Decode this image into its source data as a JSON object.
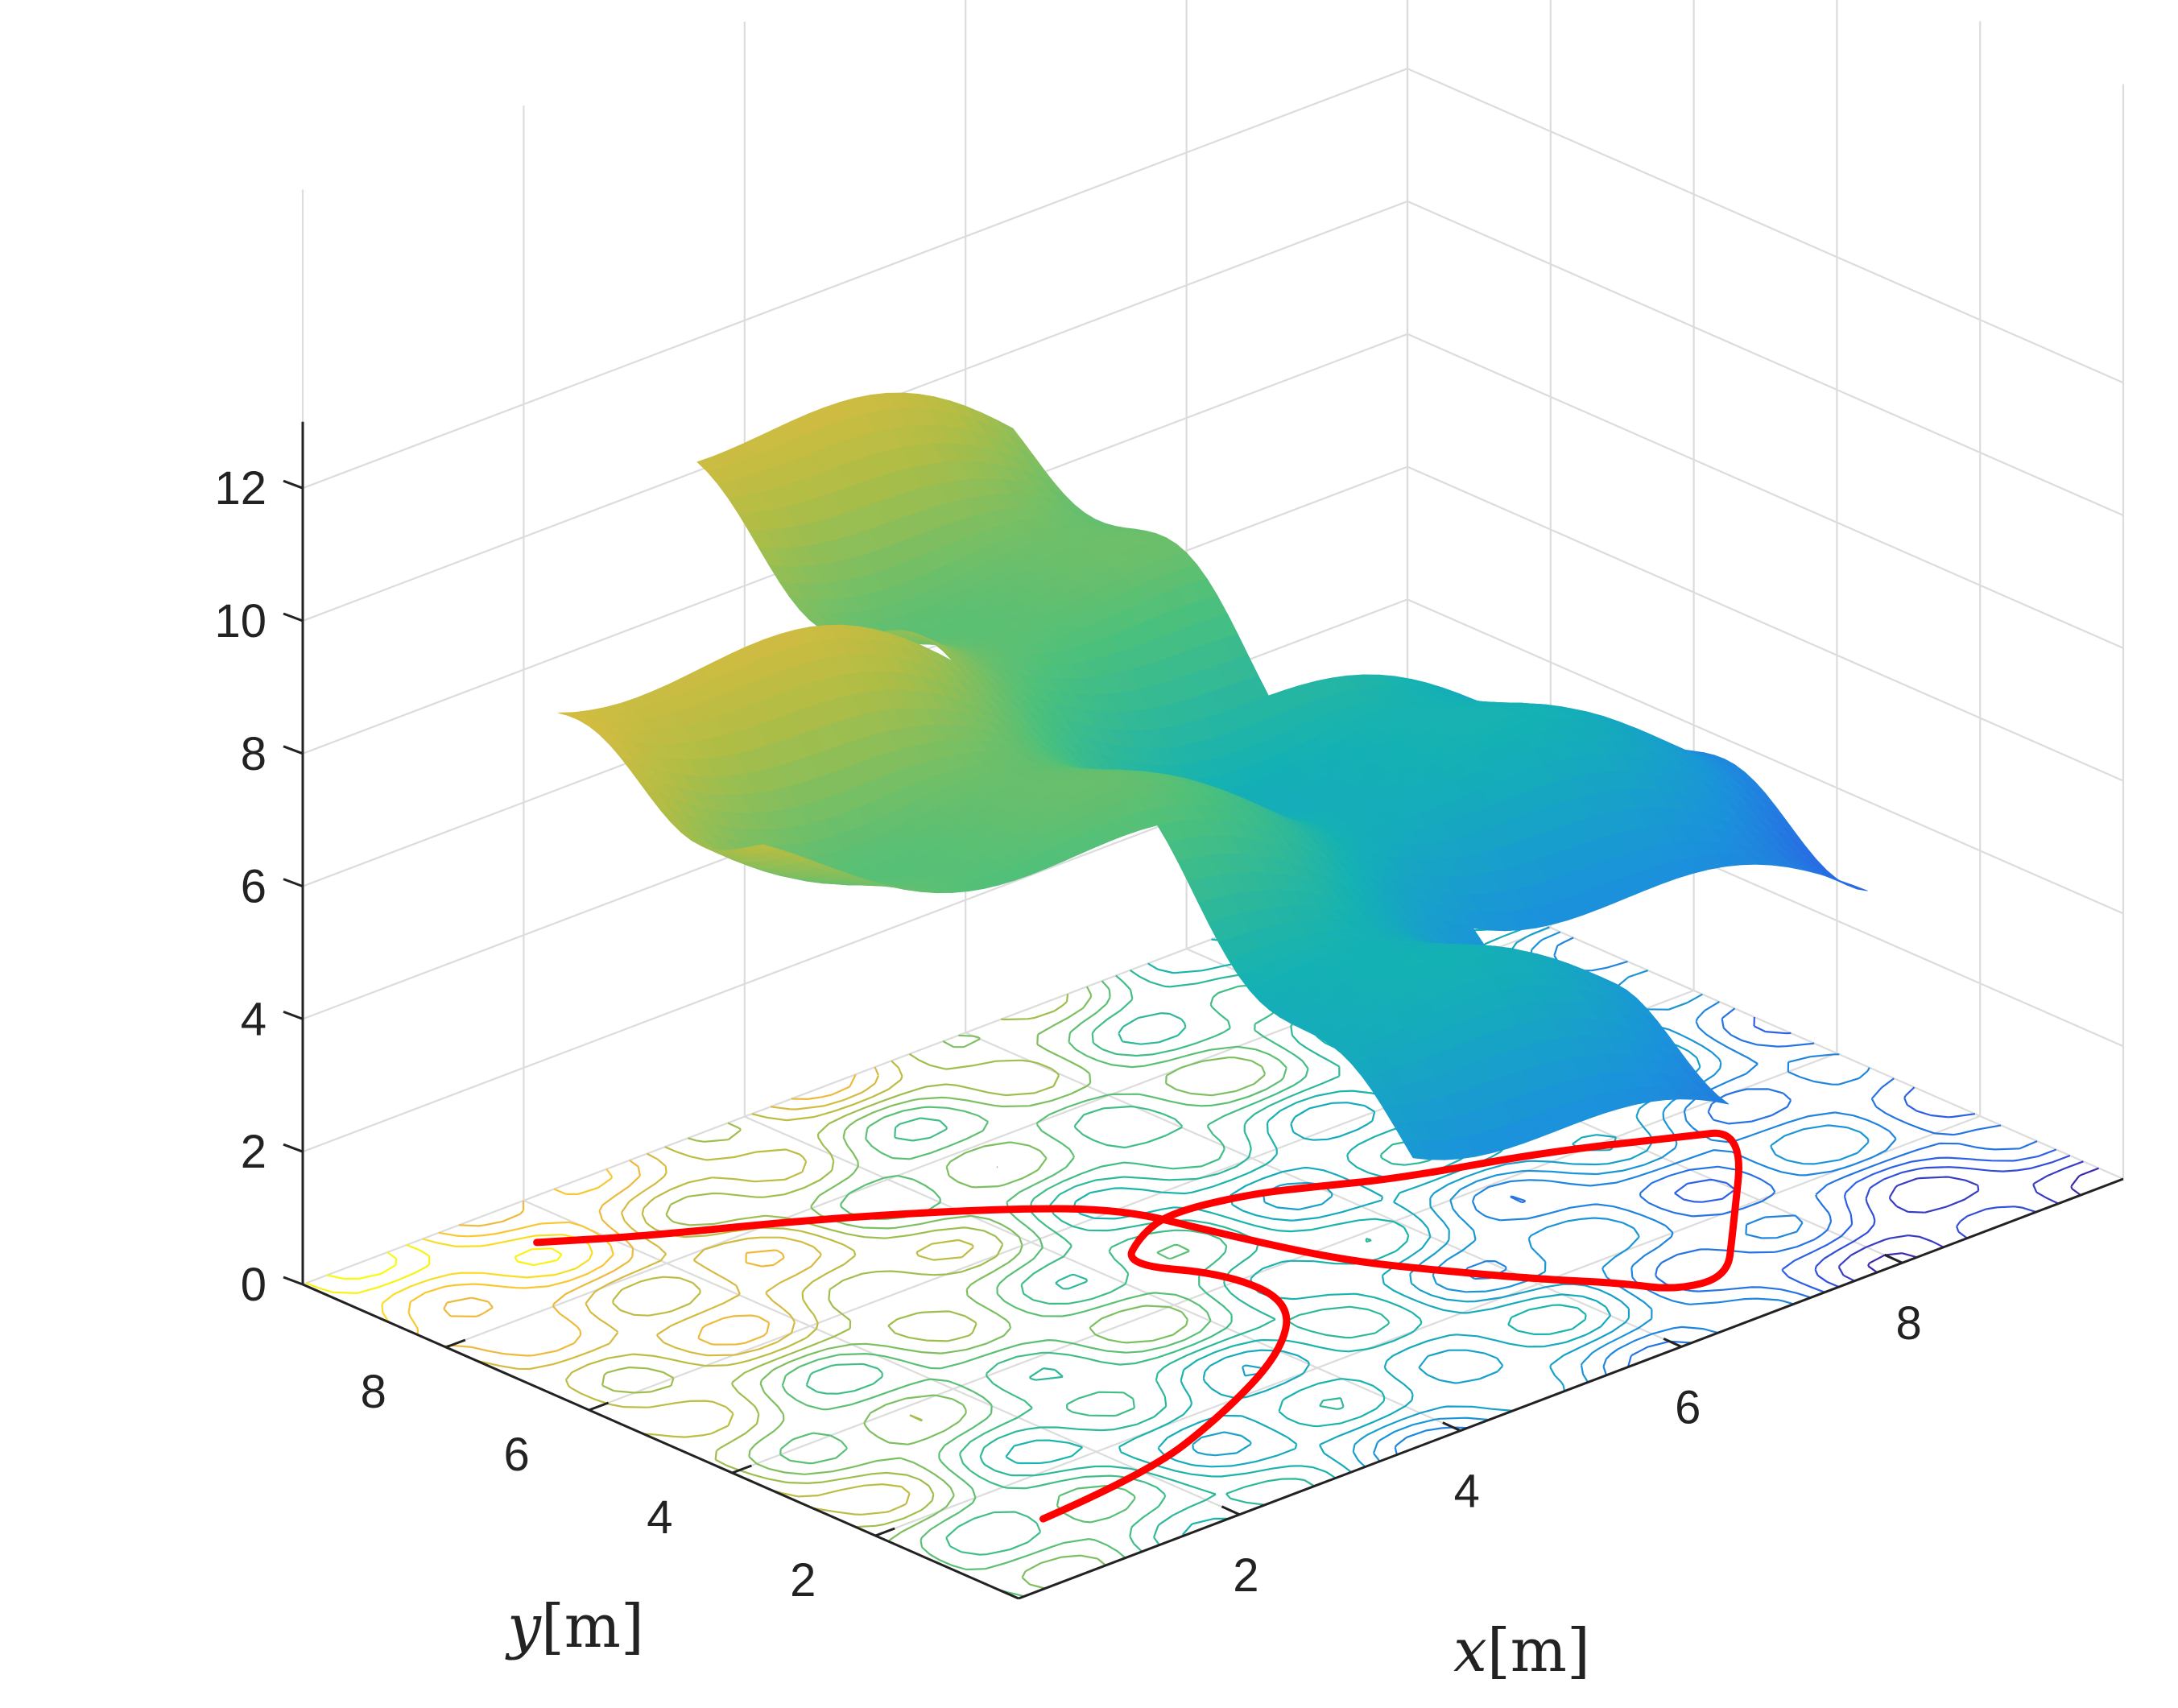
{
  "chart_data": {
    "type": "surface3d",
    "title": "",
    "xlabel_var": "x",
    "xlabel_unit": "[m]",
    "ylabel_var": "y",
    "ylabel_unit": "[m]",
    "zlabel": "",
    "xlim": [
      0,
      10
    ],
    "ylim": [
      0,
      10
    ],
    "zlim": [
      0,
      13
    ],
    "xticks": [
      2,
      4,
      6,
      8
    ],
    "yticks": [
      2,
      4,
      6,
      8
    ],
    "zticks": [
      0,
      2,
      4,
      6,
      8,
      10,
      12
    ],
    "grid": true,
    "colormap": "parula",
    "colormap_stops": [
      "#3e26a8",
      "#2e5ce8",
      "#1b92db",
      "#14b1b4",
      "#4cc07c",
      "#b0bd45",
      "#f8ba3c",
      "#f9fb0e"
    ],
    "surface": {
      "description_height_ridges": "two height bands: y in [3.5,6.5] and x in [3.5,6.5]; height rises toward small x, reaches ~12.5 at x=0,y=10 and ~1 at x=6,y=1",
      "base_height": [
        12.5,
        1.0
      ],
      "ridge_x_range": [
        3.5,
        6.5
      ],
      "ridge_y_range": [
        3.5,
        6.5
      ]
    },
    "contour_levels": 22,
    "path": {
      "color": "#ff0000",
      "points_xy": [
        [
          1.0,
          1.2
        ],
        [
          2.0,
          1.3
        ],
        [
          3.0,
          1.8
        ],
        [
          4.0,
          2.5
        ],
        [
          4.6,
          3.3
        ],
        [
          4.6,
          4.2
        ],
        [
          4.2,
          5.0
        ],
        [
          4.6,
          5.4
        ],
        [
          5.0,
          5.6
        ],
        [
          5.6,
          5.4
        ],
        [
          6.0,
          5.1
        ],
        [
          6.5,
          4.7
        ],
        [
          7.5,
          4.2
        ],
        [
          8.3,
          3.6
        ],
        [
          8.7,
          3.3
        ],
        [
          7.5,
          1.6
        ],
        [
          7.0,
          0.9
        ],
        [
          6.6,
          1.0
        ],
        [
          6.4,
          1.5
        ],
        [
          6.1,
          2.0
        ],
        [
          5.7,
          2.8
        ],
        [
          5.3,
          3.7
        ],
        [
          5.0,
          5.0
        ],
        [
          4.8,
          6.0
        ],
        [
          4.2,
          6.8
        ],
        [
          3.2,
          7.8
        ],
        [
          2.2,
          8.6
        ],
        [
          1.6,
          9.2
        ]
      ]
    }
  }
}
